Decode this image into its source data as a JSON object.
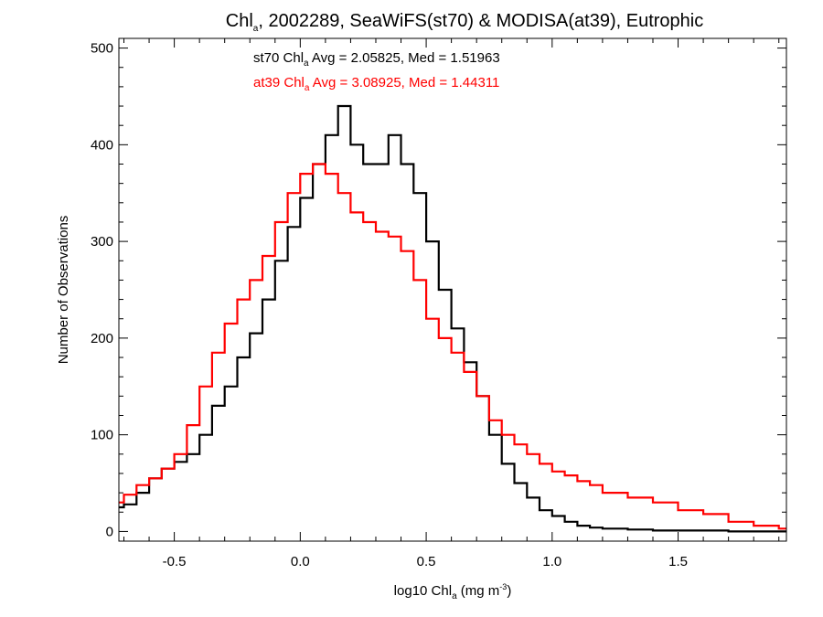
{
  "chart_data": {
    "type": "line",
    "subtype": "step-histogram",
    "title": {
      "prefix": "Chl",
      "sub": "a",
      "suffix": ", 2002289, SeaWiFS(st70) & MODISA(at39), Eutrophic"
    },
    "xlabel": {
      "prefix": "log10 Chl",
      "sub": "a",
      "mid": " (mg m",
      "sup": "-3",
      "suffix": ")"
    },
    "ylabel": "Number of Observations",
    "xlim": [
      -0.72,
      1.93
    ],
    "ylim": [
      -10,
      510
    ],
    "xticks": [
      -0.5,
      0.0,
      0.5,
      1.0,
      1.5
    ],
    "xtick_labels": [
      "-0.5",
      "0.0",
      "0.5",
      "1.0",
      "1.5"
    ],
    "yticks": [
      0,
      100,
      200,
      300,
      400,
      500
    ],
    "ytick_labels": [
      "0",
      "100",
      "200",
      "300",
      "400",
      "500"
    ],
    "grid": false,
    "annotations": [
      {
        "prefix": "st70 Chl",
        "sub": "a",
        "suffix": " Avg = 2.05825, Med = 1.51963",
        "color": "#000000"
      },
      {
        "prefix": "at39 Chl",
        "sub": "a",
        "suffix": " Avg = 3.08925, Med = 1.44311",
        "color": "#ff0000"
      }
    ],
    "series": [
      {
        "color": "#000000",
        "x": [
          -0.72,
          -0.7,
          -0.65,
          -0.6,
          -0.55,
          -0.5,
          -0.45,
          -0.4,
          -0.35,
          -0.3,
          -0.25,
          -0.2,
          -0.15,
          -0.1,
          -0.05,
          0.0,
          0.05,
          0.1,
          0.15,
          0.2,
          0.25,
          0.3,
          0.35,
          0.4,
          0.45,
          0.5,
          0.55,
          0.6,
          0.65,
          0.7,
          0.75,
          0.8,
          0.85,
          0.9,
          0.95,
          1.0,
          1.05,
          1.1,
          1.15,
          1.2,
          1.3,
          1.4,
          1.5,
          1.6,
          1.7,
          1.8,
          1.9,
          1.93
        ],
        "y": [
          25,
          28,
          40,
          55,
          65,
          72,
          80,
          100,
          130,
          150,
          180,
          205,
          240,
          280,
          315,
          345,
          380,
          410,
          440,
          400,
          380,
          380,
          410,
          380,
          350,
          300,
          250,
          210,
          175,
          140,
          100,
          70,
          50,
          35,
          22,
          16,
          10,
          6,
          4,
          3,
          2,
          1,
          1,
          1,
          0,
          0,
          0,
          0
        ]
      },
      {
        "color": "#ff0000",
        "x": [
          -0.72,
          -0.7,
          -0.65,
          -0.6,
          -0.55,
          -0.5,
          -0.45,
          -0.4,
          -0.35,
          -0.3,
          -0.25,
          -0.2,
          -0.15,
          -0.1,
          -0.05,
          0.0,
          0.05,
          0.1,
          0.15,
          0.2,
          0.25,
          0.3,
          0.35,
          0.4,
          0.45,
          0.5,
          0.55,
          0.6,
          0.65,
          0.7,
          0.75,
          0.8,
          0.85,
          0.9,
          0.95,
          1.0,
          1.05,
          1.1,
          1.15,
          1.2,
          1.3,
          1.4,
          1.5,
          1.6,
          1.7,
          1.8,
          1.9,
          1.93
        ],
        "y": [
          30,
          38,
          48,
          55,
          65,
          80,
          110,
          150,
          185,
          215,
          240,
          260,
          285,
          320,
          350,
          370,
          380,
          370,
          350,
          330,
          320,
          310,
          305,
          290,
          260,
          220,
          200,
          185,
          165,
          140,
          115,
          100,
          90,
          80,
          70,
          62,
          58,
          52,
          48,
          40,
          35,
          30,
          22,
          18,
          10,
          6,
          3,
          3
        ]
      }
    ]
  }
}
